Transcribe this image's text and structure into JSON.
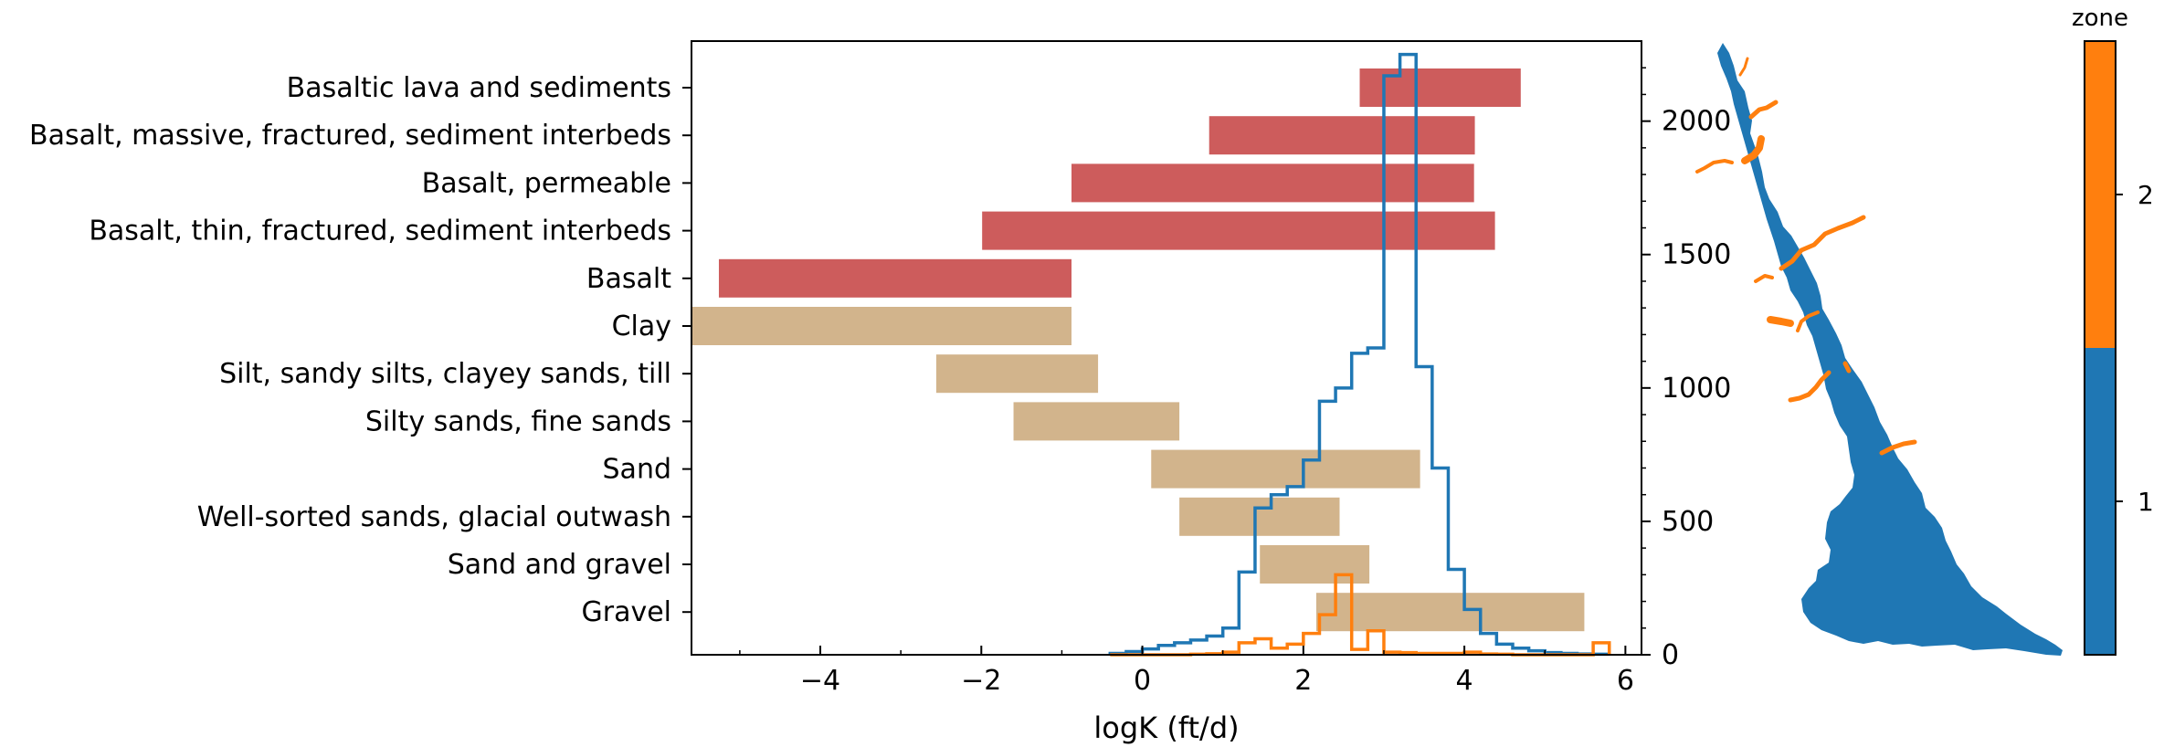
{
  "chart_data": [
    {
      "type": "bar",
      "orientation": "horizontal-range",
      "xlabel": "logK (ft/d)",
      "xlim": [
        -5.6,
        6.2
      ],
      "x_ticks": [
        -4,
        -2,
        0,
        2,
        4,
        6
      ],
      "x_tick_labels": [
        "−4",
        "−2",
        "0",
        "2",
        "4",
        "6"
      ],
      "categories": [
        "Basaltic lava and sediments",
        "Basalt, massive, fractured, sediment interbeds",
        "Basalt, permeable",
        "Basalt, thin, fractured, sediment interbeds",
        "Basalt",
        "Clay",
        "Silt, sandy silts, clayey sands, till",
        "Silty sands, fine sands",
        "Sand",
        "Well-sorted sands, glacial outwash",
        "Sand and gravel",
        "Gravel"
      ],
      "ranges": [
        [
          2.7,
          4.7
        ],
        [
          0.83,
          4.13
        ],
        [
          -0.88,
          4.12
        ],
        [
          -1.99,
          4.38
        ],
        [
          -5.26,
          -0.88
        ],
        [
          -5.6,
          -0.88
        ],
        [
          -2.56,
          -0.55
        ],
        [
          -1.6,
          0.46
        ],
        [
          0.11,
          3.45
        ],
        [
          0.46,
          2.45
        ],
        [
          1.46,
          2.82
        ],
        [
          2.16,
          5.49
        ]
      ],
      "bar_groups": [
        "basalt",
        "basalt",
        "basalt",
        "basalt",
        "basalt",
        "sediment",
        "sediment",
        "sediment",
        "sediment",
        "sediment",
        "sediment",
        "sediment"
      ],
      "colors": {
        "basalt": "#cd5c5c",
        "sediment": "#d2b48c"
      }
    },
    {
      "type": "histogram",
      "secondary_y_axis": "right",
      "ylim": [
        0,
        2300
      ],
      "y_ticks": [
        0,
        500,
        1000,
        1500,
        2000
      ],
      "x_edges": [
        -0.4,
        -0.2,
        0.0,
        0.2,
        0.4,
        0.6,
        0.8,
        1.0,
        1.2,
        1.4,
        1.6,
        1.8,
        2.0,
        2.2,
        2.4,
        2.6,
        2.8,
        3.0,
        3.2,
        3.4,
        3.6,
        3.8,
        4.0,
        4.2,
        4.4,
        4.6,
        4.8,
        5.0,
        5.2,
        5.4,
        5.6,
        5.8
      ],
      "series": [
        {
          "color": "#1f77b4",
          "counts": [
            5,
            12,
            22,
            35,
            45,
            55,
            70,
            100,
            310,
            550,
            600,
            630,
            730,
            950,
            1000,
            1130,
            1150,
            2170,
            2250,
            1080,
            700,
            320,
            170,
            80,
            40,
            25,
            15,
            8,
            5,
            3,
            2
          ]
        },
        {
          "color": "#ff7f0e",
          "counts": [
            0,
            0,
            0,
            0,
            0,
            2,
            4,
            10,
            45,
            60,
            25,
            40,
            80,
            150,
            300,
            20,
            90,
            10,
            8,
            5,
            5,
            5,
            10,
            3,
            2,
            0,
            0,
            0,
            0,
            0,
            45
          ]
        }
      ]
    },
    {
      "type": "map",
      "colorbar_label": "zone",
      "colorbar_tick_labels": [
        "1",
        "2"
      ],
      "zones": [
        {
          "value": 1,
          "color": "#1f77b4"
        },
        {
          "value": 2,
          "color": "#ff7f0e"
        }
      ]
    }
  ]
}
